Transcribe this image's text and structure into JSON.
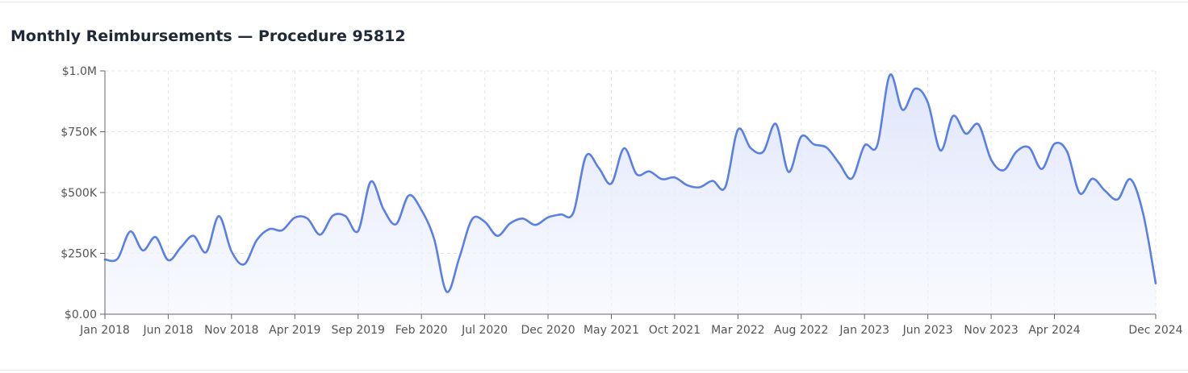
{
  "chart_data": {
    "type": "area",
    "title": "Monthly Reimbursements — Procedure 95812",
    "xlabel": "",
    "ylabel": "",
    "ylim": [
      0,
      1000000
    ],
    "y_ticks": [
      0,
      250000,
      500000,
      750000,
      1000000
    ],
    "y_tick_labels": [
      "$0.00",
      "$250K",
      "$500K",
      "$750K",
      "$1.0M"
    ],
    "x_tick_labels": [
      "Jan 2018",
      "Jun 2018",
      "Nov 2018",
      "Apr 2019",
      "Sep 2019",
      "Feb 2020",
      "Jul 2020",
      "Dec 2020",
      "May 2021",
      "Oct 2021",
      "Mar 2022",
      "Aug 2022",
      "Jan 2023",
      "Jun 2023",
      "Nov 2023",
      "Apr 2024",
      "Dec 2024"
    ],
    "x_tick_month_index": [
      0,
      5,
      10,
      15,
      20,
      25,
      30,
      35,
      40,
      45,
      50,
      55,
      60,
      65,
      70,
      75,
      83
    ],
    "grid": true,
    "line_color": "#5b7fe5",
    "fill_color": "#e4eafb",
    "x_start": "Jan 2018",
    "x_end": "Dec 2024",
    "values": [
      225000,
      228000,
      340000,
      262000,
      317000,
      222000,
      275000,
      322000,
      255000,
      403000,
      258000,
      205000,
      305000,
      350000,
      345000,
      397000,
      393000,
      327000,
      405000,
      403000,
      342000,
      545000,
      432000,
      370000,
      488000,
      428000,
      310000,
      92000,
      233000,
      390000,
      380000,
      322000,
      373000,
      393000,
      367000,
      398000,
      410000,
      417000,
      650000,
      602000,
      537000,
      682000,
      575000,
      587000,
      555000,
      562000,
      530000,
      522000,
      548000,
      522000,
      758000,
      683000,
      668000,
      782000,
      585000,
      730000,
      698000,
      685000,
      620000,
      558000,
      693000,
      693000,
      983000,
      840000,
      927000,
      870000,
      673000,
      815000,
      742000,
      780000,
      635000,
      592000,
      668000,
      685000,
      597000,
      700000,
      668000,
      497000,
      557000,
      507000,
      472000,
      555000,
      415000,
      127000
    ]
  }
}
